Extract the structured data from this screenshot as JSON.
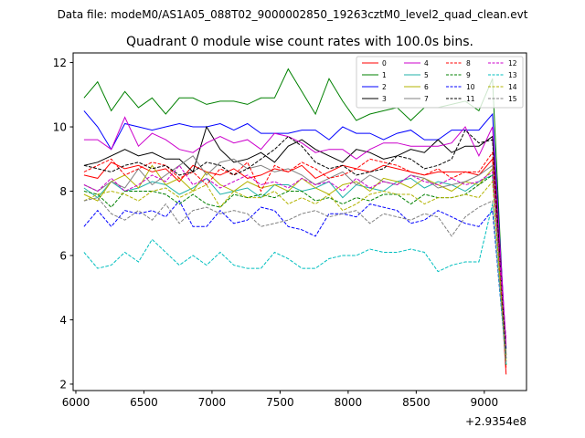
{
  "suptitle": "Data file: modeM0/AS1A05_088T02_9000002850_19263cztM0_level2_quad_clean.evt",
  "chart_data": {
    "type": "line",
    "title": "Quadrant 0 module wise count rates with 100.0s bins.",
    "xlabel": "",
    "ylabel": "",
    "x_offset_label": "+2.9354e8",
    "xlim": [
      5980,
      9310
    ],
    "ylim": [
      1.8,
      12.3
    ],
    "xticks": [
      6000,
      6500,
      7000,
      7500,
      8000,
      8500,
      9000
    ],
    "yticks": [
      2,
      4,
      6,
      8,
      10,
      12
    ],
    "grid": false,
    "legend_placement": "top-right",
    "x": [
      6060,
      6160,
      6260,
      6360,
      6460,
      6560,
      6660,
      6760,
      6860,
      6960,
      7060,
      7160,
      7260,
      7360,
      7460,
      7560,
      7660,
      7760,
      7860,
      7960,
      8060,
      8160,
      8260,
      8360,
      8460,
      8560,
      8660,
      8760,
      8860,
      8960,
      9060,
      9160
    ],
    "series": [
      {
        "name": "0",
        "color": "#ff0000",
        "dash": "solid",
        "values": [
          8.5,
          8.4,
          8.9,
          8.7,
          8.8,
          8.6,
          8.7,
          8.3,
          8.8,
          8.6,
          8.5,
          8.7,
          8.4,
          8.5,
          8.7,
          8.6,
          8.8,
          8.4,
          8.6,
          8.8,
          8.7,
          8.6,
          8.8,
          8.7,
          8.6,
          8.5,
          8.6,
          8.6,
          8.6,
          8.5,
          9.0,
          2.3
        ]
      },
      {
        "name": "1",
        "color": "#008000",
        "dash": "solid",
        "values": [
          10.9,
          11.4,
          10.5,
          11.1,
          10.6,
          10.9,
          10.4,
          10.9,
          10.9,
          10.7,
          10.8,
          10.8,
          10.7,
          10.9,
          10.9,
          11.8,
          11.1,
          10.4,
          11.5,
          10.8,
          10.2,
          10.4,
          10.5,
          10.6,
          10.2,
          10.6,
          10.6,
          10.7,
          10.8,
          10.5,
          11.5,
          2.6
        ]
      },
      {
        "name": "2",
        "color": "#0000ff",
        "dash": "solid",
        "values": [
          10.5,
          10.0,
          9.3,
          10.1,
          10.0,
          9.9,
          10.0,
          10.1,
          10.0,
          10.0,
          10.1,
          9.9,
          10.1,
          9.8,
          9.8,
          9.8,
          9.9,
          9.9,
          9.6,
          10.0,
          9.8,
          9.8,
          9.6,
          9.8,
          9.9,
          9.6,
          9.6,
          9.9,
          9.9,
          9.9,
          10.4,
          3.1
        ]
      },
      {
        "name": "3",
        "color": "#000000",
        "dash": "solid",
        "values": [
          8.8,
          8.9,
          9.1,
          9.3,
          9.1,
          9.2,
          9.0,
          9.0,
          8.6,
          10.0,
          9.3,
          8.9,
          9.0,
          9.2,
          8.9,
          9.4,
          9.6,
          9.3,
          9.1,
          8.9,
          9.3,
          9.2,
          9.0,
          9.1,
          9.3,
          9.2,
          9.6,
          9.2,
          9.4,
          9.4,
          9.7,
          2.9
        ]
      },
      {
        "name": "4",
        "color": "#cc00cc",
        "dash": "solid",
        "values": [
          9.6,
          9.6,
          9.3,
          10.3,
          9.4,
          9.8,
          9.6,
          9.3,
          9.2,
          9.5,
          9.7,
          9.5,
          9.6,
          9.3,
          9.8,
          9.7,
          9.5,
          9.2,
          9.3,
          9.3,
          9.0,
          9.3,
          9.5,
          9.5,
          9.4,
          9.4,
          9.4,
          9.5,
          10.0,
          9.1,
          10.0,
          3.2
        ]
      },
      {
        "name": "5",
        "color": "#20b2aa",
        "dash": "solid",
        "values": [
          8.1,
          7.8,
          8.3,
          8.0,
          8.1,
          8.3,
          8.2,
          7.9,
          8.1,
          8.4,
          7.9,
          8.0,
          8.1,
          7.8,
          8.2,
          8.2,
          8.0,
          8.1,
          8.3,
          7.8,
          8.2,
          8.1,
          8.0,
          8.3,
          8.4,
          8.1,
          8.3,
          8.2,
          8.0,
          8.3,
          8.5,
          2.8
        ]
      },
      {
        "name": "6",
        "color": "#b3b300",
        "dash": "solid",
        "values": [
          7.9,
          7.7,
          8.3,
          8.5,
          8.1,
          8.8,
          8.2,
          8.4,
          8.0,
          8.6,
          8.2,
          8.0,
          8.3,
          8.1,
          8.2,
          8.0,
          8.4,
          8.1,
          7.9,
          8.2,
          8.3,
          8.0,
          8.4,
          8.3,
          8.1,
          8.4,
          8.2,
          8.0,
          8.3,
          8.2,
          8.7,
          2.7
        ]
      },
      {
        "name": "7",
        "color": "#808080",
        "dash": "solid",
        "values": [
          8.2,
          8.0,
          8.3,
          8.1,
          8.7,
          8.2,
          8.5,
          8.8,
          9.1,
          8.5,
          8.9,
          9.0,
          8.7,
          8.8,
          8.6,
          8.7,
          8.5,
          8.2,
          8.4,
          8.6,
          8.2,
          8.5,
          8.3,
          8.2,
          8.5,
          8.4,
          8.1,
          8.2,
          8.3,
          8.5,
          8.8,
          2.9
        ]
      },
      {
        "name": "8",
        "color": "#ff0000",
        "dash": "dash",
        "values": [
          8.6,
          8.8,
          9.0,
          8.5,
          8.7,
          8.9,
          8.8,
          8.4,
          8.6,
          8.2,
          8.7,
          8.5,
          8.9,
          8.0,
          8.8,
          8.6,
          8.9,
          8.7,
          8.4,
          8.5,
          8.7,
          9.0,
          8.9,
          8.8,
          8.6,
          8.5,
          8.7,
          8.4,
          8.6,
          8.6,
          9.2,
          2.5
        ]
      },
      {
        "name": "9",
        "color": "#008000",
        "dash": "dash",
        "values": [
          8.0,
          7.9,
          7.5,
          8.0,
          8.0,
          8.0,
          7.9,
          7.6,
          7.9,
          7.6,
          7.5,
          7.9,
          7.8,
          7.9,
          7.8,
          8.0,
          8.0,
          7.7,
          7.8,
          7.6,
          7.8,
          7.7,
          7.9,
          7.9,
          7.6,
          7.9,
          7.8,
          7.8,
          7.9,
          8.2,
          8.5,
          2.6
        ]
      },
      {
        "name": "10",
        "color": "#0000ff",
        "dash": "dash",
        "values": [
          6.9,
          7.4,
          6.9,
          7.4,
          7.3,
          7.4,
          7.2,
          7.7,
          6.9,
          6.9,
          7.4,
          7.0,
          7.1,
          7.5,
          7.4,
          6.9,
          6.8,
          6.6,
          7.3,
          7.3,
          7.2,
          7.6,
          7.5,
          7.4,
          7.0,
          7.1,
          7.4,
          7.2,
          7.0,
          6.9,
          7.4,
          2.7
        ]
      },
      {
        "name": "11",
        "color": "#000000",
        "dash": "dash",
        "values": [
          8.8,
          8.7,
          8.6,
          8.8,
          8.9,
          8.7,
          8.8,
          8.5,
          8.6,
          8.9,
          8.8,
          8.5,
          8.7,
          9.0,
          9.3,
          9.7,
          9.4,
          8.9,
          8.7,
          8.8,
          8.5,
          8.6,
          8.7,
          9.1,
          9.0,
          8.7,
          8.8,
          9.0,
          9.9,
          9.5,
          9.6,
          2.8
        ]
      },
      {
        "name": "12",
        "color": "#cc00cc",
        "dash": "dash",
        "values": [
          8.2,
          8.0,
          8.4,
          8.0,
          8.2,
          8.5,
          8.3,
          8.8,
          8.2,
          8.4,
          8.1,
          8.3,
          8.5,
          8.2,
          8.3,
          8.1,
          8.4,
          8.2,
          8.3,
          8.0,
          8.4,
          8.1,
          8.3,
          8.2,
          8.5,
          8.3,
          8.2,
          8.4,
          8.2,
          8.3,
          8.6,
          3.4
        ]
      },
      {
        "name": "13",
        "color": "#00bfbf",
        "dash": "dash",
        "values": [
          6.1,
          5.6,
          5.7,
          6.1,
          5.8,
          6.5,
          6.1,
          5.7,
          6.0,
          5.7,
          6.1,
          5.7,
          5.6,
          5.6,
          6.1,
          5.9,
          5.6,
          5.6,
          5.9,
          6.0,
          6.0,
          6.2,
          6.1,
          6.1,
          6.2,
          6.1,
          5.5,
          5.7,
          5.8,
          5.8,
          7.6,
          2.6
        ]
      },
      {
        "name": "14",
        "color": "#b3b300",
        "dash": "dash",
        "values": [
          7.7,
          7.9,
          8.0,
          7.9,
          7.7,
          8.0,
          8.1,
          7.8,
          8.0,
          8.2,
          7.5,
          8.0,
          7.8,
          7.8,
          8.0,
          7.6,
          7.8,
          7.6,
          7.9,
          7.4,
          7.6,
          7.9,
          8.0,
          7.9,
          7.9,
          7.6,
          7.8,
          7.8,
          7.9,
          7.8,
          8.3,
          2.7
        ]
      },
      {
        "name": "15",
        "color": "#808080",
        "dash": "dash",
        "values": [
          7.7,
          7.8,
          7.3,
          7.1,
          7.4,
          7.1,
          7.6,
          7.0,
          7.4,
          7.5,
          7.3,
          7.4,
          7.3,
          6.9,
          7.0,
          7.1,
          7.3,
          7.4,
          7.2,
          7.3,
          7.4,
          7.0,
          7.3,
          7.2,
          7.1,
          7.3,
          7.2,
          6.6,
          7.2,
          7.5,
          7.7,
          2.7
        ]
      }
    ]
  }
}
